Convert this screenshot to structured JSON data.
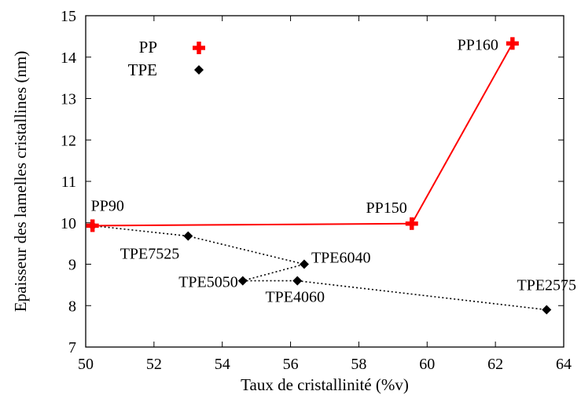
{
  "chart_data": {
    "type": "scatter",
    "title": "",
    "xlabel": "Taux de cristallinité (%v)",
    "ylabel": "Epaisseur des lamelles cristallines (nm)",
    "xlim": [
      50,
      64
    ],
    "ylim": [
      7,
      15
    ],
    "xticks": [
      "50",
      "52",
      "54",
      "56",
      "58",
      "60",
      "62",
      "64"
    ],
    "yticks": [
      "7",
      "8",
      "9",
      "10",
      "11",
      "12",
      "13",
      "14",
      "15"
    ],
    "grid": false,
    "legend": "top-left",
    "series": [
      {
        "name": "PP",
        "color": "#ff0000",
        "marker": "plus",
        "line": "solid",
        "points": [
          {
            "label": "PP90",
            "x": 50.2,
            "y": 9.93
          },
          {
            "label": "PP150",
            "x": 59.55,
            "y": 9.98
          },
          {
            "label": "PP160",
            "x": 62.5,
            "y": 14.33
          }
        ]
      },
      {
        "name": "TPE",
        "color": "#000000",
        "marker": "diamond",
        "line": "dotted",
        "points": [
          {
            "label": "",
            "x": 50.2,
            "y": 9.93
          },
          {
            "label": "TPE7525",
            "x": 53.0,
            "y": 9.68
          },
          {
            "label": "TPE6040",
            "x": 56.4,
            "y": 9.0
          },
          {
            "label": "TPE5050",
            "x": 54.6,
            "y": 8.6
          },
          {
            "label": "TPE4060",
            "x": 56.2,
            "y": 8.6
          },
          {
            "label": "TPE2575",
            "x": 63.5,
            "y": 7.9
          }
        ]
      }
    ]
  }
}
